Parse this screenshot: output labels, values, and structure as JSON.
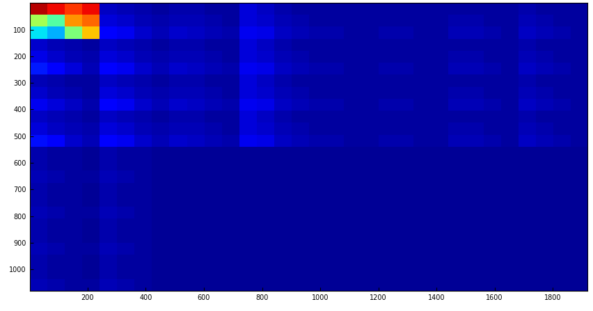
{
  "chart_data": {
    "type": "heatmap",
    "color": "jet",
    "color_range": [
      0,
      1
    ],
    "xlim": [
      0.5,
      1920.5
    ],
    "ylim": [
      1080.5,
      0.5
    ],
    "xticks": [
      200,
      400,
      600,
      800,
      1000,
      1200,
      1400,
      1600,
      1800
    ],
    "yticks": [
      100,
      200,
      300,
      400,
      500,
      600,
      700,
      800,
      900,
      1000
    ],
    "cells": [
      [
        0.95,
        0.9,
        0.85,
        0.9,
        0.06,
        0.05,
        0.04,
        0.03,
        0.04,
        0.04,
        0.03,
        0.03,
        0.08,
        0.06,
        0.04,
        0.03,
        0.03,
        0.03,
        0.03,
        0.03,
        0.03,
        0.03,
        0.03,
        0.03,
        0.03,
        0.03,
        0.03,
        0.03,
        0.04,
        0.03,
        0.03,
        0.03
      ],
      [
        0.55,
        0.45,
        0.75,
        0.8,
        0.08,
        0.07,
        0.05,
        0.04,
        0.05,
        0.05,
        0.04,
        0.03,
        0.08,
        0.07,
        0.05,
        0.04,
        0.03,
        0.03,
        0.03,
        0.03,
        0.03,
        0.03,
        0.03,
        0.03,
        0.04,
        0.04,
        0.03,
        0.03,
        0.05,
        0.04,
        0.03,
        0.03
      ],
      [
        0.35,
        0.3,
        0.5,
        0.7,
        0.12,
        0.1,
        0.07,
        0.05,
        0.07,
        0.06,
        0.05,
        0.04,
        0.1,
        0.09,
        0.06,
        0.05,
        0.04,
        0.04,
        0.03,
        0.03,
        0.04,
        0.04,
        0.03,
        0.03,
        0.05,
        0.05,
        0.04,
        0.03,
        0.06,
        0.05,
        0.04,
        0.03
      ],
      [
        0.07,
        0.05,
        0.04,
        0.03,
        0.06,
        0.05,
        0.04,
        0.03,
        0.04,
        0.04,
        0.03,
        0.03,
        0.08,
        0.06,
        0.04,
        0.03,
        0.03,
        0.03,
        0.03,
        0.03,
        0.03,
        0.03,
        0.03,
        0.03,
        0.03,
        0.03,
        0.03,
        0.03,
        0.04,
        0.03,
        0.03,
        0.03
      ],
      [
        0.09,
        0.07,
        0.05,
        0.04,
        0.08,
        0.07,
        0.05,
        0.04,
        0.05,
        0.05,
        0.04,
        0.03,
        0.08,
        0.07,
        0.05,
        0.04,
        0.03,
        0.03,
        0.03,
        0.03,
        0.03,
        0.03,
        0.03,
        0.03,
        0.04,
        0.04,
        0.03,
        0.03,
        0.05,
        0.04,
        0.03,
        0.03
      ],
      [
        0.15,
        0.12,
        0.08,
        0.05,
        0.12,
        0.1,
        0.07,
        0.05,
        0.07,
        0.06,
        0.05,
        0.04,
        0.1,
        0.09,
        0.06,
        0.05,
        0.04,
        0.04,
        0.03,
        0.03,
        0.04,
        0.04,
        0.03,
        0.03,
        0.05,
        0.05,
        0.04,
        0.03,
        0.06,
        0.05,
        0.04,
        0.03
      ],
      [
        0.05,
        0.04,
        0.03,
        0.03,
        0.06,
        0.05,
        0.04,
        0.03,
        0.04,
        0.04,
        0.03,
        0.03,
        0.08,
        0.06,
        0.04,
        0.03,
        0.03,
        0.03,
        0.03,
        0.03,
        0.03,
        0.03,
        0.03,
        0.03,
        0.03,
        0.03,
        0.03,
        0.03,
        0.04,
        0.03,
        0.03,
        0.03
      ],
      [
        0.07,
        0.05,
        0.04,
        0.03,
        0.08,
        0.07,
        0.05,
        0.04,
        0.05,
        0.05,
        0.04,
        0.03,
        0.08,
        0.07,
        0.05,
        0.04,
        0.03,
        0.03,
        0.03,
        0.03,
        0.03,
        0.03,
        0.03,
        0.03,
        0.04,
        0.04,
        0.03,
        0.03,
        0.05,
        0.04,
        0.03,
        0.03
      ],
      [
        0.1,
        0.08,
        0.06,
        0.04,
        0.12,
        0.1,
        0.07,
        0.05,
        0.07,
        0.06,
        0.05,
        0.04,
        0.1,
        0.09,
        0.06,
        0.05,
        0.04,
        0.04,
        0.03,
        0.03,
        0.04,
        0.04,
        0.03,
        0.03,
        0.05,
        0.05,
        0.04,
        0.03,
        0.06,
        0.05,
        0.04,
        0.03
      ],
      [
        0.06,
        0.05,
        0.04,
        0.03,
        0.06,
        0.05,
        0.04,
        0.03,
        0.04,
        0.04,
        0.03,
        0.03,
        0.08,
        0.06,
        0.04,
        0.03,
        0.03,
        0.03,
        0.03,
        0.03,
        0.03,
        0.03,
        0.03,
        0.03,
        0.03,
        0.03,
        0.03,
        0.03,
        0.04,
        0.03,
        0.03,
        0.03
      ],
      [
        0.08,
        0.06,
        0.05,
        0.04,
        0.08,
        0.07,
        0.05,
        0.04,
        0.05,
        0.05,
        0.04,
        0.03,
        0.08,
        0.07,
        0.05,
        0.04,
        0.03,
        0.03,
        0.03,
        0.03,
        0.03,
        0.03,
        0.03,
        0.03,
        0.04,
        0.04,
        0.03,
        0.03,
        0.05,
        0.04,
        0.03,
        0.03
      ],
      [
        0.14,
        0.11,
        0.07,
        0.05,
        0.12,
        0.1,
        0.07,
        0.05,
        0.07,
        0.06,
        0.05,
        0.04,
        0.1,
        0.09,
        0.06,
        0.05,
        0.04,
        0.04,
        0.03,
        0.03,
        0.04,
        0.04,
        0.03,
        0.03,
        0.05,
        0.05,
        0.04,
        0.03,
        0.06,
        0.05,
        0.04,
        0.03
      ],
      [
        0.04,
        0.03,
        0.03,
        0.02,
        0.04,
        0.03,
        0.03,
        0.02,
        0.02,
        0.02,
        0.02,
        0.02,
        0.02,
        0.02,
        0.02,
        0.02,
        0.02,
        0.02,
        0.02,
        0.02,
        0.02,
        0.02,
        0.02,
        0.02,
        0.02,
        0.02,
        0.02,
        0.02,
        0.02,
        0.02,
        0.02,
        0.02
      ],
      [
        0.04,
        0.03,
        0.03,
        0.02,
        0.04,
        0.03,
        0.03,
        0.02,
        0.02,
        0.02,
        0.02,
        0.02,
        0.02,
        0.02,
        0.02,
        0.02,
        0.02,
        0.02,
        0.02,
        0.02,
        0.02,
        0.02,
        0.02,
        0.02,
        0.02,
        0.02,
        0.02,
        0.02,
        0.02,
        0.02,
        0.02,
        0.02
      ],
      [
        0.05,
        0.04,
        0.03,
        0.03,
        0.05,
        0.04,
        0.03,
        0.02,
        0.02,
        0.02,
        0.02,
        0.02,
        0.02,
        0.02,
        0.02,
        0.02,
        0.02,
        0.02,
        0.02,
        0.02,
        0.02,
        0.02,
        0.02,
        0.02,
        0.02,
        0.02,
        0.02,
        0.02,
        0.02,
        0.02,
        0.02,
        0.02
      ],
      [
        0.04,
        0.03,
        0.03,
        0.02,
        0.04,
        0.03,
        0.03,
        0.02,
        0.02,
        0.02,
        0.02,
        0.02,
        0.02,
        0.02,
        0.02,
        0.02,
        0.02,
        0.02,
        0.02,
        0.02,
        0.02,
        0.02,
        0.02,
        0.02,
        0.02,
        0.02,
        0.02,
        0.02,
        0.02,
        0.02,
        0.02,
        0.02
      ],
      [
        0.04,
        0.03,
        0.03,
        0.02,
        0.04,
        0.03,
        0.03,
        0.02,
        0.02,
        0.02,
        0.02,
        0.02,
        0.02,
        0.02,
        0.02,
        0.02,
        0.02,
        0.02,
        0.02,
        0.02,
        0.02,
        0.02,
        0.02,
        0.02,
        0.02,
        0.02,
        0.02,
        0.02,
        0.02,
        0.02,
        0.02,
        0.02
      ],
      [
        0.05,
        0.04,
        0.03,
        0.03,
        0.05,
        0.04,
        0.03,
        0.02,
        0.02,
        0.02,
        0.02,
        0.02,
        0.02,
        0.02,
        0.02,
        0.02,
        0.02,
        0.02,
        0.02,
        0.02,
        0.02,
        0.02,
        0.02,
        0.02,
        0.02,
        0.02,
        0.02,
        0.02,
        0.02,
        0.02,
        0.02,
        0.02
      ],
      [
        0.04,
        0.03,
        0.03,
        0.02,
        0.04,
        0.03,
        0.03,
        0.02,
        0.02,
        0.02,
        0.02,
        0.02,
        0.02,
        0.02,
        0.02,
        0.02,
        0.02,
        0.02,
        0.02,
        0.02,
        0.02,
        0.02,
        0.02,
        0.02,
        0.02,
        0.02,
        0.02,
        0.02,
        0.02,
        0.02,
        0.02,
        0.02
      ],
      [
        0.04,
        0.03,
        0.03,
        0.02,
        0.04,
        0.03,
        0.03,
        0.02,
        0.02,
        0.02,
        0.02,
        0.02,
        0.02,
        0.02,
        0.02,
        0.02,
        0.02,
        0.02,
        0.02,
        0.02,
        0.02,
        0.02,
        0.02,
        0.02,
        0.02,
        0.02,
        0.02,
        0.02,
        0.02,
        0.02,
        0.02,
        0.02
      ],
      [
        0.05,
        0.04,
        0.03,
        0.03,
        0.05,
        0.04,
        0.03,
        0.02,
        0.02,
        0.02,
        0.02,
        0.02,
        0.02,
        0.02,
        0.02,
        0.02,
        0.02,
        0.02,
        0.02,
        0.02,
        0.02,
        0.02,
        0.02,
        0.02,
        0.02,
        0.02,
        0.02,
        0.02,
        0.02,
        0.02,
        0.02,
        0.02
      ],
      [
        0.04,
        0.03,
        0.03,
        0.02,
        0.04,
        0.03,
        0.03,
        0.02,
        0.02,
        0.02,
        0.02,
        0.02,
        0.02,
        0.02,
        0.02,
        0.02,
        0.02,
        0.02,
        0.02,
        0.02,
        0.02,
        0.02,
        0.02,
        0.02,
        0.02,
        0.02,
        0.02,
        0.02,
        0.02,
        0.02,
        0.02,
        0.02
      ],
      [
        0.04,
        0.03,
        0.03,
        0.02,
        0.04,
        0.03,
        0.03,
        0.02,
        0.02,
        0.02,
        0.02,
        0.02,
        0.02,
        0.02,
        0.02,
        0.02,
        0.02,
        0.02,
        0.02,
        0.02,
        0.02,
        0.02,
        0.02,
        0.02,
        0.02,
        0.02,
        0.02,
        0.02,
        0.02,
        0.02,
        0.02,
        0.02
      ],
      [
        0.05,
        0.04,
        0.03,
        0.03,
        0.05,
        0.04,
        0.03,
        0.02,
        0.02,
        0.02,
        0.02,
        0.02,
        0.02,
        0.02,
        0.02,
        0.02,
        0.02,
        0.02,
        0.02,
        0.02,
        0.02,
        0.02,
        0.02,
        0.02,
        0.02,
        0.02,
        0.02,
        0.02,
        0.02,
        0.02,
        0.02,
        0.02
      ]
    ]
  }
}
